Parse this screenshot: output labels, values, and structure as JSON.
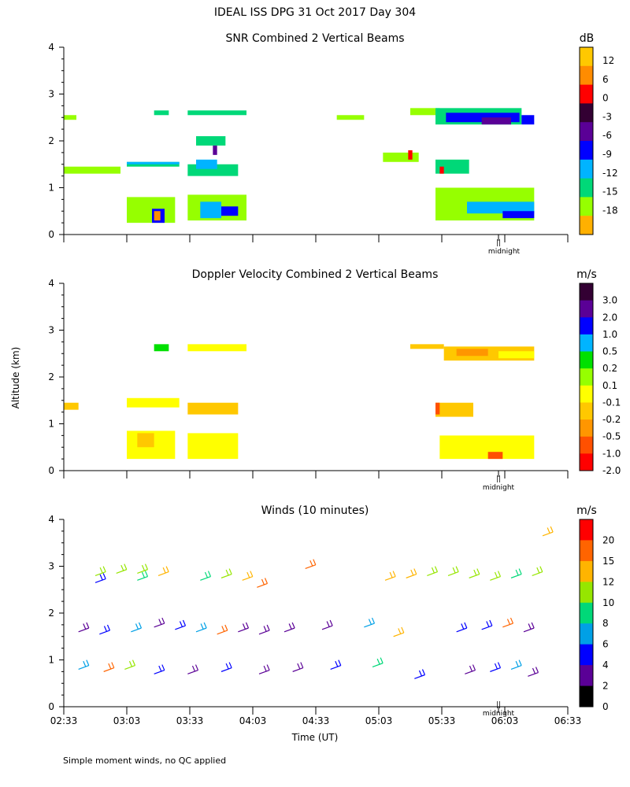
{
  "figure": {
    "title": "IDEAL ISS DPG  31 Oct 2017 Day 304",
    "footnote": "Simple moment winds, no QC applied",
    "ylabel": "Altitude (km)",
    "xlabel": "Time (UT)",
    "midnight_label": "midnight",
    "midnight_marker": "||"
  },
  "chart_data": [
    {
      "type": "heatmap",
      "title": "SNR Combined 2 Vertical Beams",
      "xlabel": "Time (UT)",
      "ylabel": "Altitude (km)",
      "x_ticks": [
        "02:33",
        "03:03",
        "03:33",
        "04:03",
        "04:33",
        "05:03",
        "05:33",
        "06:03",
        "06:33"
      ],
      "x_minutes": [
        153,
        183,
        213,
        243,
        273,
        303,
        333,
        363,
        393
      ],
      "xlim": [
        153,
        393
      ],
      "ylim": [
        0,
        4
      ],
      "y_ticks": [
        0,
        1,
        2,
        3,
        4
      ],
      "midnight_minute": 360,
      "colorbar": {
        "unit": "dB",
        "labels": [
          "12",
          "6",
          "0",
          "-3",
          "-6",
          "-9",
          "-12",
          "-15",
          "-18"
        ],
        "colors": [
          "#ffc800",
          "#ff8c00",
          "#ff0000",
          "#330033",
          "#5a0096",
          "#0000ff",
          "#00b4ff",
          "#00d878",
          "#96ff00",
          "#ffb000"
        ]
      },
      "layers": [
        {
          "t0": 153,
          "t1": 159,
          "h0": 2.45,
          "h1": 2.55,
          "level": 8
        },
        {
          "t0": 153,
          "t1": 180,
          "h0": 1.3,
          "h1": 1.45,
          "level": 8
        },
        {
          "t0": 183,
          "t1": 208,
          "h0": 1.45,
          "h1": 1.55,
          "level": 7
        },
        {
          "t0": 183,
          "t1": 208,
          "h0": 1.5,
          "h1": 1.55,
          "level": 6
        },
        {
          "t0": 196,
          "t1": 203,
          "h0": 2.55,
          "h1": 2.65,
          "level": 7
        },
        {
          "t0": 212,
          "t1": 236,
          "h0": 1.25,
          "h1": 1.5,
          "level": 7
        },
        {
          "t0": 216,
          "t1": 226,
          "h0": 1.4,
          "h1": 1.6,
          "level": 6
        },
        {
          "t0": 212,
          "t1": 240,
          "h0": 2.55,
          "h1": 2.65,
          "level": 7
        },
        {
          "t0": 216,
          "t1": 230,
          "h0": 1.9,
          "h1": 2.1,
          "level": 7
        },
        {
          "t0": 224,
          "t1": 226,
          "h0": 1.7,
          "h1": 1.9,
          "level": 4
        },
        {
          "t0": 183,
          "t1": 206,
          "h0": 0.25,
          "h1": 0.8,
          "level": 8
        },
        {
          "t0": 195,
          "t1": 201,
          "h0": 0.25,
          "h1": 0.55,
          "level": 5
        },
        {
          "t0": 196,
          "t1": 199,
          "h0": 0.3,
          "h1": 0.5,
          "level": 1
        },
        {
          "t0": 212,
          "t1": 240,
          "h0": 0.3,
          "h1": 0.85,
          "level": 8
        },
        {
          "t0": 218,
          "t1": 228,
          "h0": 0.35,
          "h1": 0.7,
          "level": 6
        },
        {
          "t0": 228,
          "t1": 236,
          "h0": 0.4,
          "h1": 0.6,
          "level": 5
        },
        {
          "t0": 283,
          "t1": 296,
          "h0": 2.45,
          "h1": 2.55,
          "level": 8
        },
        {
          "t0": 305,
          "t1": 322,
          "h0": 1.55,
          "h1": 1.75,
          "level": 8
        },
        {
          "t0": 317,
          "t1": 319,
          "h0": 1.6,
          "h1": 1.8,
          "level": 2
        },
        {
          "t0": 318,
          "t1": 332,
          "h0": 2.55,
          "h1": 2.7,
          "level": 8
        },
        {
          "t0": 330,
          "t1": 371,
          "h0": 2.35,
          "h1": 2.7,
          "level": 7
        },
        {
          "t0": 335,
          "t1": 370,
          "h0": 2.4,
          "h1": 2.6,
          "level": 5
        },
        {
          "t0": 352,
          "t1": 366,
          "h0": 2.35,
          "h1": 2.5,
          "level": 4
        },
        {
          "t0": 371,
          "t1": 377,
          "h0": 2.35,
          "h1": 2.55,
          "level": 5
        },
        {
          "t0": 330,
          "t1": 346,
          "h0": 1.3,
          "h1": 1.6,
          "level": 7
        },
        {
          "t0": 332,
          "t1": 334,
          "h0": 1.3,
          "h1": 1.45,
          "level": 2
        },
        {
          "t0": 330,
          "t1": 377,
          "h0": 0.3,
          "h1": 1.0,
          "level": 8
        },
        {
          "t0": 345,
          "t1": 377,
          "h0": 0.45,
          "h1": 0.7,
          "level": 6
        },
        {
          "t0": 362,
          "t1": 377,
          "h0": 0.35,
          "h1": 0.5,
          "level": 5
        }
      ]
    },
    {
      "type": "heatmap",
      "title": "Doppler Velocity Combined 2 Vertical Beams",
      "xlabel": "Time (UT)",
      "ylabel": "Altitude (km)",
      "x_ticks": [
        "02:33",
        "03:03",
        "03:33",
        "04:03",
        "04:33",
        "05:03",
        "05:33",
        "06:03",
        "06:33"
      ],
      "x_minutes": [
        153,
        183,
        213,
        243,
        273,
        303,
        333,
        363,
        393
      ],
      "xlim": [
        153,
        393
      ],
      "ylim": [
        0,
        4
      ],
      "y_ticks": [
        0,
        1,
        2,
        3,
        4
      ],
      "midnight_minute": 360,
      "colorbar": {
        "unit": "m/s",
        "labels": [
          "3.0",
          "2.0",
          "1.0",
          "0.5",
          "0.2",
          "0.1",
          "-0.1",
          "-0.2",
          "-0.5",
          "-1.0",
          "-2.0"
        ],
        "colors": [
          "#330033",
          "#5a0096",
          "#0000ff",
          "#00b4ff",
          "#00e000",
          "#96ff00",
          "#ffff00",
          "#ffc800",
          "#ff9600",
          "#ff5000",
          "#ff0000"
        ]
      },
      "layers": [
        {
          "t0": 153,
          "t1": 160,
          "h0": 1.3,
          "h1": 1.45,
          "level": 7
        },
        {
          "t0": 183,
          "t1": 208,
          "h0": 1.35,
          "h1": 1.55,
          "level": 6
        },
        {
          "t0": 196,
          "t1": 203,
          "h0": 2.55,
          "h1": 2.7,
          "level": 4
        },
        {
          "t0": 212,
          "t1": 240,
          "h0": 2.55,
          "h1": 2.7,
          "level": 6
        },
        {
          "t0": 212,
          "t1": 236,
          "h0": 1.2,
          "h1": 1.45,
          "level": 7
        },
        {
          "t0": 183,
          "t1": 206,
          "h0": 0.25,
          "h1": 0.85,
          "level": 6
        },
        {
          "t0": 188,
          "t1": 196,
          "h0": 0.5,
          "h1": 0.8,
          "level": 7
        },
        {
          "t0": 212,
          "t1": 236,
          "h0": 0.25,
          "h1": 0.8,
          "level": 6
        },
        {
          "t0": 318,
          "t1": 334,
          "h0": 2.6,
          "h1": 2.7,
          "level": 7
        },
        {
          "t0": 334,
          "t1": 377,
          "h0": 2.35,
          "h1": 2.65,
          "level": 7
        },
        {
          "t0": 340,
          "t1": 355,
          "h0": 2.45,
          "h1": 2.6,
          "level": 8
        },
        {
          "t0": 360,
          "t1": 377,
          "h0": 2.4,
          "h1": 2.55,
          "level": 6
        },
        {
          "t0": 330,
          "t1": 348,
          "h0": 1.15,
          "h1": 1.45,
          "level": 7
        },
        {
          "t0": 330,
          "t1": 332,
          "h0": 1.2,
          "h1": 1.45,
          "level": 9
        },
        {
          "t0": 332,
          "t1": 377,
          "h0": 0.25,
          "h1": 0.75,
          "level": 6
        },
        {
          "t0": 355,
          "t1": 362,
          "h0": 0.25,
          "h1": 0.4,
          "level": 9
        }
      ]
    },
    {
      "type": "scatter",
      "subtype": "wind barbs",
      "title": "Winds (10 minutes)",
      "xlabel": "Time (UT)",
      "ylabel": "Altitude (km)",
      "x_ticks": [
        "02:33",
        "03:03",
        "03:33",
        "04:03",
        "04:33",
        "05:03",
        "05:33",
        "06:03",
        "06:33"
      ],
      "x_minutes": [
        153,
        183,
        213,
        243,
        273,
        303,
        333,
        363,
        393
      ],
      "xlim": [
        153,
        393
      ],
      "ylim": [
        0,
        4
      ],
      "y_ticks": [
        0,
        1,
        2,
        3,
        4
      ],
      "midnight_minute": 360,
      "colorbar": {
        "unit": "m/s",
        "labels": [
          "20",
          "15",
          "12",
          "10",
          "8",
          "6",
          "4",
          "2",
          "0"
        ],
        "colors": [
          "#ff0000",
          "#ff6400",
          "#ffb400",
          "#96e600",
          "#00d878",
          "#00a0e6",
          "#0000ff",
          "#5a0096",
          "#000000"
        ]
      },
      "barbs": [
        {
          "t": 168,
          "h": 2.8,
          "speed": 10
        },
        {
          "t": 178,
          "h": 2.85,
          "speed": 10
        },
        {
          "t": 188,
          "h": 2.85,
          "speed": 11
        },
        {
          "t": 198,
          "h": 2.8,
          "speed": 13
        },
        {
          "t": 168,
          "h": 2.65,
          "speed": 4
        },
        {
          "t": 188,
          "h": 2.7,
          "speed": 8
        },
        {
          "t": 218,
          "h": 2.7,
          "speed": 8
        },
        {
          "t": 228,
          "h": 2.75,
          "speed": 10
        },
        {
          "t": 238,
          "h": 2.7,
          "speed": 12
        },
        {
          "t": 245,
          "h": 2.55,
          "speed": 16
        },
        {
          "t": 268,
          "h": 2.95,
          "speed": 16
        },
        {
          "t": 306,
          "h": 2.7,
          "speed": 12
        },
        {
          "t": 316,
          "h": 2.75,
          "speed": 13
        },
        {
          "t": 326,
          "h": 2.8,
          "speed": 11
        },
        {
          "t": 336,
          "h": 2.8,
          "speed": 10
        },
        {
          "t": 346,
          "h": 2.75,
          "speed": 10
        },
        {
          "t": 356,
          "h": 2.7,
          "speed": 10
        },
        {
          "t": 366,
          "h": 2.75,
          "speed": 9
        },
        {
          "t": 376,
          "h": 2.8,
          "speed": 10
        },
        {
          "t": 381,
          "h": 3.65,
          "speed": 13
        },
        {
          "t": 160,
          "h": 1.6,
          "speed": 3
        },
        {
          "t": 170,
          "h": 1.55,
          "speed": 4
        },
        {
          "t": 185,
          "h": 1.6,
          "speed": 6
        },
        {
          "t": 196,
          "h": 1.7,
          "speed": 3
        },
        {
          "t": 206,
          "h": 1.65,
          "speed": 4
        },
        {
          "t": 216,
          "h": 1.6,
          "speed": 7
        },
        {
          "t": 226,
          "h": 1.55,
          "speed": 18
        },
        {
          "t": 236,
          "h": 1.6,
          "speed": 3
        },
        {
          "t": 246,
          "h": 1.55,
          "speed": 2
        },
        {
          "t": 258,
          "h": 1.6,
          "speed": 3
        },
        {
          "t": 276,
          "h": 1.65,
          "speed": 3
        },
        {
          "t": 296,
          "h": 1.7,
          "speed": 6
        },
        {
          "t": 310,
          "h": 1.5,
          "speed": 13
        },
        {
          "t": 340,
          "h": 1.6,
          "speed": 5
        },
        {
          "t": 352,
          "h": 1.65,
          "speed": 4
        },
        {
          "t": 362,
          "h": 1.7,
          "speed": 18
        },
        {
          "t": 372,
          "h": 1.6,
          "speed": 3
        },
        {
          "t": 160,
          "h": 0.8,
          "speed": 6
        },
        {
          "t": 172,
          "h": 0.75,
          "speed": 16
        },
        {
          "t": 182,
          "h": 0.8,
          "speed": 10
        },
        {
          "t": 196,
          "h": 0.7,
          "speed": 4
        },
        {
          "t": 212,
          "h": 0.7,
          "speed": 3
        },
        {
          "t": 228,
          "h": 0.75,
          "speed": 5
        },
        {
          "t": 246,
          "h": 0.7,
          "speed": 2
        },
        {
          "t": 262,
          "h": 0.75,
          "speed": 3
        },
        {
          "t": 280,
          "h": 0.8,
          "speed": 4
        },
        {
          "t": 300,
          "h": 0.85,
          "speed": 9
        },
        {
          "t": 320,
          "h": 0.6,
          "speed": 4
        },
        {
          "t": 344,
          "h": 0.7,
          "speed": 3
        },
        {
          "t": 356,
          "h": 0.75,
          "speed": 4
        },
        {
          "t": 366,
          "h": 0.8,
          "speed": 6
        },
        {
          "t": 374,
          "h": 0.65,
          "speed": 2
        }
      ]
    }
  ]
}
